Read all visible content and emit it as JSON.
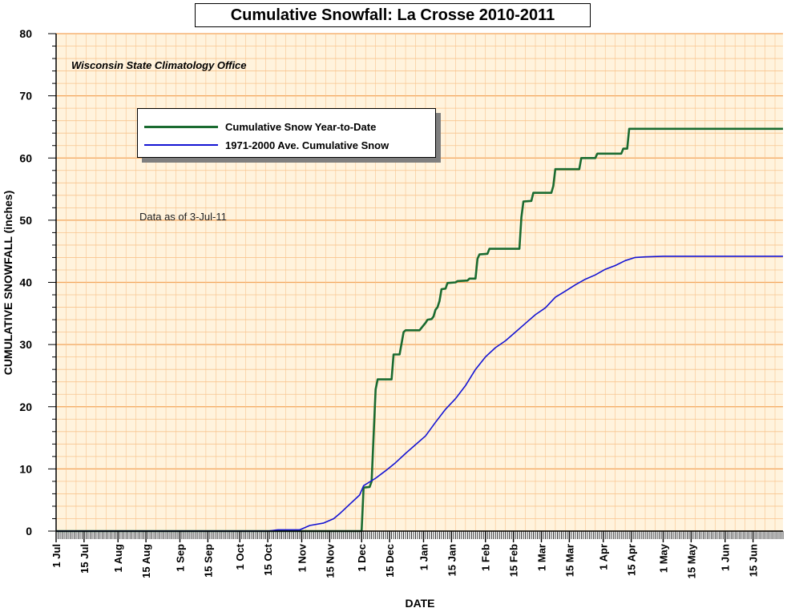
{
  "chart_data": {
    "type": "line",
    "title": "Cumulative Snowfall: La Crosse 2010-2011",
    "source": "Wisconsin State Climatology Office",
    "note": "Data as of 3-Jul-11",
    "xlabel": "DATE",
    "ylabel": "CUMULATIVE SNOWFALL (inches)",
    "ylim": [
      0,
      80
    ],
    "y_ticks": [
      0,
      10,
      20,
      30,
      40,
      50,
      60,
      70,
      80
    ],
    "xlim": [
      "2010-07-01",
      "2011-06-30"
    ],
    "x_tick_labels": [
      "1 Jul",
      "15 Jul",
      "1 Aug",
      "15 Aug",
      "1 Sep",
      "15 Sep",
      "1 Oct",
      "15 Oct",
      "1 Nov",
      "15 Nov",
      "1 Dec",
      "15 Dec",
      "1 Jan",
      "15 Jan",
      "1 Feb",
      "15 Feb",
      "1 Mar",
      "15 Mar",
      "1 Apr",
      "15 Apr",
      "1 May",
      "15 May",
      "1 Jun",
      "15 Jun"
    ],
    "x_tick_dates": [
      "2010-07-01",
      "2010-07-15",
      "2010-08-01",
      "2010-08-15",
      "2010-09-01",
      "2010-09-15",
      "2010-10-01",
      "2010-10-15",
      "2010-11-01",
      "2010-11-15",
      "2010-12-01",
      "2010-12-15",
      "2011-01-01",
      "2011-01-15",
      "2011-02-01",
      "2011-02-15",
      "2011-03-01",
      "2011-03-15",
      "2011-04-01",
      "2011-04-15",
      "2011-05-01",
      "2011-05-15",
      "2011-06-01",
      "2011-06-15"
    ],
    "grid": true,
    "legend_position": "upper-left",
    "colors": {
      "plot_background": "#fff3dd",
      "grid_major": "#f3a45a",
      "grid_minor": "#f8c48e"
    },
    "series": [
      {
        "name": "Cumulative Snow Year-to-Date",
        "color": "#1a6b30",
        "points": [
          [
            "2010-07-01",
            0
          ],
          [
            "2010-12-01",
            0
          ],
          [
            "2010-12-02",
            7
          ],
          [
            "2010-12-05",
            7.1
          ],
          [
            "2010-12-06",
            8
          ],
          [
            "2010-12-08",
            22.8
          ],
          [
            "2010-12-09",
            24.4
          ],
          [
            "2010-12-16",
            24.4
          ],
          [
            "2010-12-17",
            28.4
          ],
          [
            "2010-12-20",
            28.4
          ],
          [
            "2010-12-22",
            32
          ],
          [
            "2010-12-23",
            32.3
          ],
          [
            "2010-12-30",
            32.3
          ],
          [
            "2011-01-01",
            33.1
          ],
          [
            "2011-01-02",
            33.5
          ],
          [
            "2011-01-03",
            34
          ],
          [
            "2011-01-05",
            34.1
          ],
          [
            "2011-01-06",
            34.5
          ],
          [
            "2011-01-07",
            35.6
          ],
          [
            "2011-01-08",
            36
          ],
          [
            "2011-01-09",
            37
          ],
          [
            "2011-01-10",
            38.9
          ],
          [
            "2011-01-12",
            39
          ],
          [
            "2011-01-13",
            39.9
          ],
          [
            "2011-01-17",
            40
          ],
          [
            "2011-01-18",
            40.2
          ],
          [
            "2011-01-23",
            40.3
          ],
          [
            "2011-01-24",
            40.6
          ],
          [
            "2011-01-27",
            40.6
          ],
          [
            "2011-01-28",
            43.8
          ],
          [
            "2011-01-29",
            44.5
          ],
          [
            "2011-02-02",
            44.6
          ],
          [
            "2011-02-03",
            45.4
          ],
          [
            "2011-02-18",
            45.4
          ],
          [
            "2011-02-19",
            50.5
          ],
          [
            "2011-02-20",
            53
          ],
          [
            "2011-02-24",
            53.1
          ],
          [
            "2011-02-25",
            54.4
          ],
          [
            "2011-03-06",
            54.4
          ],
          [
            "2011-03-07",
            55.5
          ],
          [
            "2011-03-08",
            58.2
          ],
          [
            "2011-03-20",
            58.2
          ],
          [
            "2011-03-21",
            60
          ],
          [
            "2011-03-28",
            60
          ],
          [
            "2011-03-29",
            60.7
          ],
          [
            "2011-04-10",
            60.7
          ],
          [
            "2011-04-11",
            61.5
          ],
          [
            "2011-04-13",
            61.5
          ],
          [
            "2011-04-14",
            64.7
          ],
          [
            "2011-06-30",
            64.7
          ]
        ]
      },
      {
        "name": "1971-2000 Ave. Cumulative Snow",
        "color": "#1414d4",
        "points": [
          [
            "2010-07-01",
            0
          ],
          [
            "2010-10-15",
            0
          ],
          [
            "2010-10-20",
            0.2
          ],
          [
            "2010-10-31",
            0.2
          ],
          [
            "2010-11-05",
            0.9
          ],
          [
            "2010-11-12",
            1.3
          ],
          [
            "2010-11-17",
            2
          ],
          [
            "2010-11-20",
            2.8
          ],
          [
            "2010-11-25",
            4.3
          ],
          [
            "2010-11-30",
            5.8
          ],
          [
            "2010-12-02",
            7.3
          ],
          [
            "2010-12-08",
            8.5
          ],
          [
            "2010-12-13",
            9.7
          ],
          [
            "2010-12-18",
            11
          ],
          [
            "2010-12-23",
            12.5
          ],
          [
            "2010-12-28",
            13.9
          ],
          [
            "2011-01-02",
            15.3
          ],
          [
            "2011-01-07",
            17.5
          ],
          [
            "2011-01-12",
            19.6
          ],
          [
            "2011-01-17",
            21.3
          ],
          [
            "2011-01-22",
            23.4
          ],
          [
            "2011-01-27",
            26
          ],
          [
            "2011-02-01",
            28
          ],
          [
            "2011-02-06",
            29.5
          ],
          [
            "2011-02-11",
            30.6
          ],
          [
            "2011-02-16",
            32
          ],
          [
            "2011-02-21",
            33.4
          ],
          [
            "2011-02-26",
            34.8
          ],
          [
            "2011-03-03",
            35.9
          ],
          [
            "2011-03-08",
            37.6
          ],
          [
            "2011-03-13",
            38.6
          ],
          [
            "2011-03-18",
            39.6
          ],
          [
            "2011-03-23",
            40.5
          ],
          [
            "2011-03-28",
            41.2
          ],
          [
            "2011-04-02",
            42.1
          ],
          [
            "2011-04-07",
            42.7
          ],
          [
            "2011-04-12",
            43.5
          ],
          [
            "2011-04-17",
            44
          ],
          [
            "2011-04-22",
            44.1
          ],
          [
            "2011-05-01",
            44.2
          ],
          [
            "2011-06-30",
            44.2
          ]
        ]
      }
    ]
  }
}
